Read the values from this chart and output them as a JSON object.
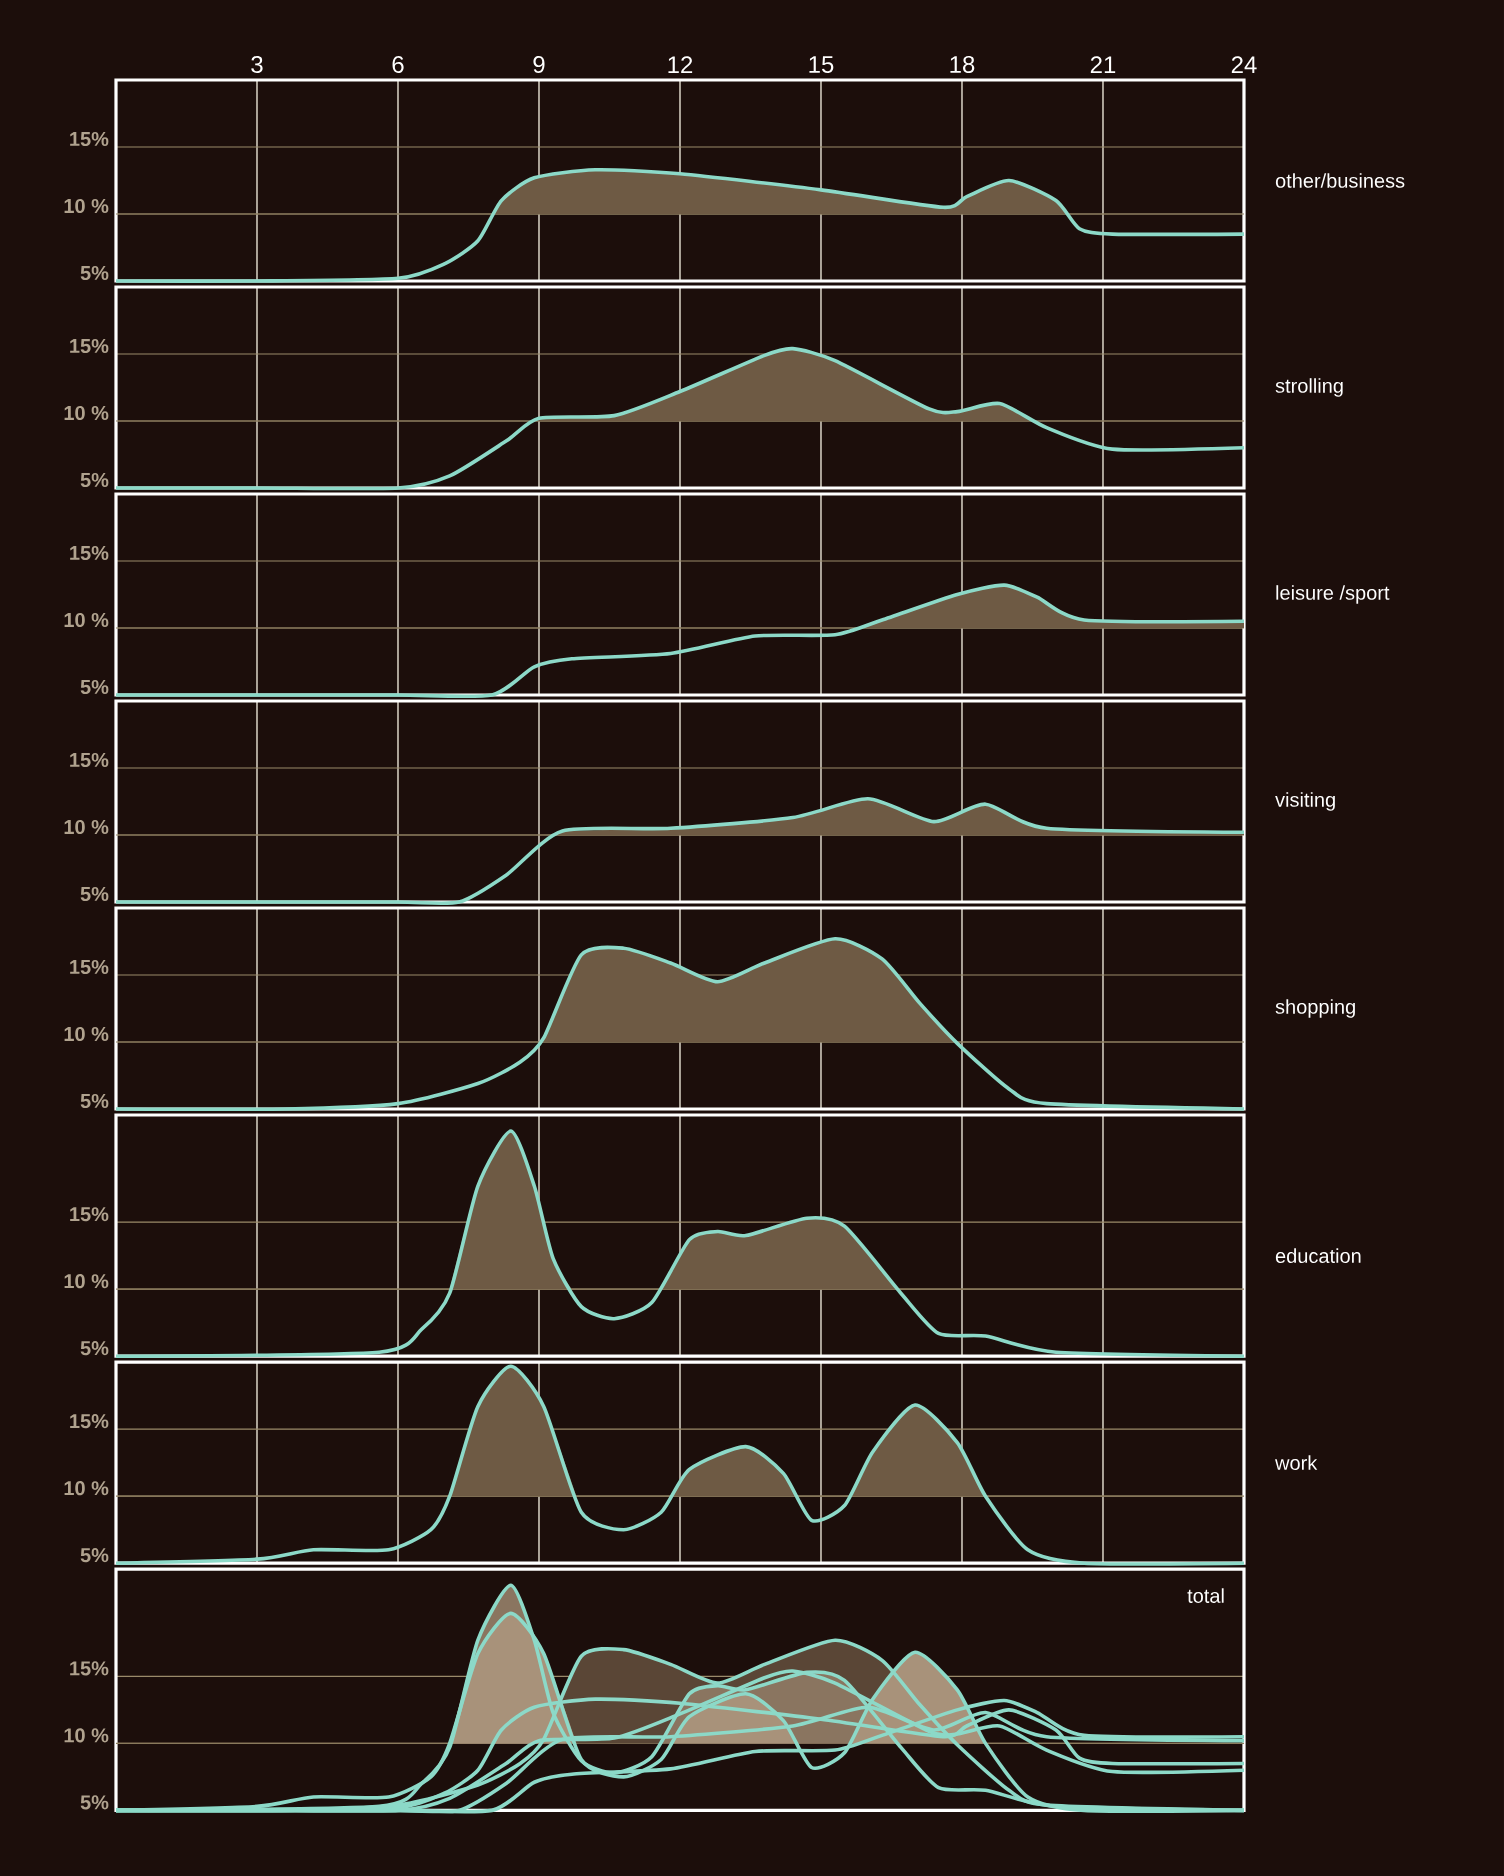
{
  "chart_data": [
    {
      "type": "line",
      "xlim": [
        0,
        24
      ],
      "xticks": [
        3,
        6,
        9,
        12,
        15,
        18,
        21,
        24
      ],
      "ylim": [
        5,
        20
      ],
      "yticks": [
        {
          "value": 5,
          "label": "5%"
        },
        {
          "value": 10,
          "label": "10 %"
        },
        {
          "value": 15,
          "label": "15%"
        }
      ],
      "grid": true,
      "ref_lines": [
        {
          "axis": "y",
          "value": 10,
          "color": "#8a7a5c"
        }
      ],
      "series": [
        {
          "type": "area",
          "color": "#6e5a44",
          "x": [
            8.0,
            8.2,
            8.9,
            10.2,
            12,
            15,
            17.6,
            18.1,
            19,
            20,
            20.2
          ],
          "values": [
            10,
            11,
            12.7,
            13.3,
            13,
            11.8,
            10.5,
            11.3,
            12.5,
            11,
            10
          ]
        },
        {
          "name": "other/business",
          "color": "#8cd9c8",
          "x": [
            0,
            3,
            6,
            7,
            7.7,
            8.2,
            8.9,
            10.2,
            12,
            15,
            17.6,
            18.1,
            19,
            20,
            20.5,
            21.2,
            24
          ],
          "values": [
            5,
            5,
            5.2,
            6.3,
            8,
            11,
            12.7,
            13.3,
            13,
            11.8,
            10.5,
            11.3,
            12.5,
            11,
            8.9,
            8.5,
            8.5
          ]
        }
      ]
    },
    {
      "type": "line",
      "xlim": [
        0,
        24
      ],
      "xticks": [
        3,
        6,
        9,
        12,
        15,
        18,
        21,
        24
      ],
      "ylim": [
        5,
        20
      ],
      "yticks": [
        {
          "value": 5,
          "label": "5%"
        },
        {
          "value": 10,
          "label": "10 %"
        },
        {
          "value": 15,
          "label": "15%"
        }
      ],
      "grid": true,
      "tick_labels": "y",
      "ref_lines": [
        {
          "axis": "y",
          "value": 10,
          "color": "#8a7a5c"
        }
      ],
      "series": [
        {
          "type": "area",
          "color": "#6e5a44",
          "x": [
            8.9,
            9,
            10.6,
            12,
            13.8,
            14.4,
            15.3,
            17.3,
            17.9,
            18.8,
            19.5
          ],
          "values": [
            10,
            10.2,
            10.4,
            12.2,
            14.9,
            15.4,
            14.5,
            10.9,
            10.7,
            11.3,
            10
          ]
        },
        {
          "name": "strolling",
          "color": "#8cd9c8",
          "x": [
            0,
            3,
            6,
            7.1,
            8.3,
            9,
            10.6,
            12,
            13.8,
            14.4,
            15.3,
            17.3,
            17.9,
            18.8,
            19.8,
            21.2,
            24
          ],
          "values": [
            5,
            5,
            5,
            5.9,
            8.5,
            10.2,
            10.4,
            12.2,
            14.9,
            15.4,
            14.5,
            10.9,
            10.7,
            11.3,
            9.5,
            7.9,
            8
          ]
        }
      ]
    },
    {
      "type": "line",
      "xlim": [
        0,
        24
      ],
      "xticks": [
        3,
        6,
        9,
        12,
        15,
        18,
        21,
        24
      ],
      "ylim": [
        5,
        20
      ],
      "yticks": [
        {
          "value": 5,
          "label": "5%"
        },
        {
          "value": 10,
          "label": "10 %"
        },
        {
          "value": 15,
          "label": "15%"
        }
      ],
      "grid": true,
      "tick_labels": "y",
      "ref_lines": [
        {
          "axis": "y",
          "value": 10,
          "color": "#8a7a5c"
        }
      ],
      "series": [
        {
          "type": "area",
          "color": "#6e5a44",
          "x": [
            15.8,
            16.3,
            17.9,
            18.9,
            19.6,
            20.6,
            24
          ],
          "values": [
            10,
            10.6,
            12.5,
            13.2,
            12.3,
            10.6,
            10.5
          ]
        },
        {
          "name": "leisure /sport",
          "color": "#8cd9c8",
          "x": [
            0,
            3,
            6,
            8,
            8.9,
            9.7,
            11.8,
            13.6,
            15.3,
            16.3,
            17.9,
            18.9,
            19.6,
            20.6,
            24
          ],
          "values": [
            5,
            5,
            5,
            5,
            7.1,
            7.7,
            8.1,
            9.4,
            9.5,
            10.6,
            12.5,
            13.2,
            12.3,
            10.6,
            10.5
          ]
        }
      ]
    },
    {
      "type": "line",
      "xlim": [
        0,
        24
      ],
      "xticks": [
        3,
        6,
        9,
        12,
        15,
        18,
        21,
        24
      ],
      "ylim": [
        5,
        20
      ],
      "yticks": [
        {
          "value": 5,
          "label": "5%"
        },
        {
          "value": 10,
          "label": "10 %"
        },
        {
          "value": 15,
          "label": "15%"
        }
      ],
      "grid": true,
      "tick_labels": "y",
      "ref_lines": [
        {
          "axis": "y",
          "value": 10,
          "color": "#8a7a5c"
        }
      ],
      "series": [
        {
          "type": "area",
          "color": "#6e5a44",
          "x": [
            9.4,
            9.5,
            11.8,
            14.4,
            16,
            17.4,
            18.5,
            19.8,
            24
          ],
          "values": [
            10,
            10.3,
            10.5,
            11.3,
            12.7,
            11,
            12.3,
            10.5,
            10.2
          ]
        },
        {
          "name": "visiting",
          "color": "#8cd9c8",
          "x": [
            0,
            3,
            6,
            7.3,
            8.3,
            9.5,
            11.8,
            14.4,
            16,
            17.4,
            18.5,
            19.8,
            24
          ],
          "values": [
            5,
            5,
            5,
            5,
            7,
            10.3,
            10.5,
            11.3,
            12.7,
            11,
            12.3,
            10.5,
            10.2
          ]
        }
      ]
    },
    {
      "type": "line",
      "xlim": [
        0,
        24
      ],
      "xticks": [
        3,
        6,
        9,
        12,
        15,
        18,
        21,
        24
      ],
      "ylim": [
        5,
        20
      ],
      "yticks": [
        {
          "value": 5,
          "label": "5%"
        },
        {
          "value": 10,
          "label": "10 %"
        },
        {
          "value": 15,
          "label": "15%"
        }
      ],
      "grid": true,
      "tick_labels": "y",
      "ref_lines": [
        {
          "axis": "y",
          "value": 10,
          "color": "#8a7a5c"
        }
      ],
      "series": [
        {
          "type": "area",
          "color": "#6e5a44",
          "x": [
            9.0,
            9.1,
            9.9,
            10.8,
            11.8,
            12.8,
            13.8,
            15.3,
            16.3,
            17.1,
            17.9
          ],
          "values": [
            10,
            10.3,
            16.5,
            17,
            15.9,
            14.5,
            15.9,
            17.7,
            16.2,
            12.9,
            10
          ]
        },
        {
          "name": "shopping",
          "color": "#8cd9c8",
          "x": [
            0,
            3.6,
            6,
            7.7,
            8.6,
            9.1,
            9.9,
            10.8,
            11.8,
            12.8,
            13.8,
            15.3,
            16.3,
            17.1,
            17.9,
            19,
            19.8,
            24
          ],
          "values": [
            5,
            5,
            5.4,
            6.9,
            8.5,
            10.3,
            16.5,
            17,
            15.9,
            14.5,
            15.9,
            17.7,
            16.2,
            12.9,
            9.9,
            6.5,
            5.4,
            5
          ]
        }
      ]
    },
    {
      "type": "line",
      "xlim": [
        0,
        24
      ],
      "xticks": [
        3,
        6,
        9,
        12,
        15,
        18,
        21,
        24
      ],
      "ylim": [
        5,
        23
      ],
      "yticks": [
        {
          "value": 5,
          "label": "5%"
        },
        {
          "value": 10,
          "label": "10 %"
        },
        {
          "value": 15,
          "label": "15%"
        }
      ],
      "grid": true,
      "tick_labels": "y",
      "ref_lines": [
        {
          "axis": "y",
          "value": 10,
          "color": "#8a7a5c"
        }
      ],
      "series": [
        {
          "type": "area",
          "color": "#6e5a44",
          "x": [
            7.1,
            7.7,
            8.4,
            8.9,
            9.3,
            9.7,
            10.6,
            11.6,
            12.2,
            12.8,
            13.4,
            14.7,
            15.5,
            16.6
          ],
          "values": [
            10,
            17.7,
            21.8,
            17.7,
            12.3,
            10,
            null,
            10,
            13.7,
            14.3,
            14,
            15.3,
            14.7,
            10
          ]
        },
        {
          "name": "education",
          "color": "#8cd9c8",
          "x": [
            0,
            5.6,
            6.5,
            7.1,
            7.7,
            8.4,
            8.9,
            9.3,
            9.9,
            10.6,
            11.4,
            12.2,
            12.8,
            13.4,
            14.7,
            15.5,
            16.7,
            17.5,
            18.5,
            20,
            24
          ],
          "values": [
            5,
            5.3,
            7,
            9.7,
            17.7,
            21.8,
            17.7,
            12.3,
            8.7,
            7.8,
            9,
            13.7,
            14.3,
            14,
            15.3,
            14.7,
            9.7,
            6.7,
            6.5,
            5.3,
            5
          ]
        }
      ]
    },
    {
      "type": "line",
      "xlim": [
        0,
        24
      ],
      "xticks": [
        3,
        6,
        9,
        12,
        15,
        18,
        21,
        24
      ],
      "ylim": [
        5,
        20
      ],
      "yticks": [
        {
          "value": 5,
          "label": "5%"
        },
        {
          "value": 10,
          "label": "10 %"
        },
        {
          "value": 15,
          "label": "15%"
        }
      ],
      "grid": true,
      "tick_labels": "y",
      "ref_lines": [
        {
          "axis": "y",
          "value": 10,
          "color": "#8a7a5c"
        }
      ],
      "series": [
        {
          "type": "area",
          "color": "#6e5a44",
          "x": [
            7.1,
            7.7,
            8.4,
            9.1,
            9.8,
            10.8,
            11.8,
            12.2,
            13.4,
            14.2,
            14.5,
            14.8,
            15.6,
            16.1,
            17,
            17.9,
            18.5
          ],
          "values": [
            10,
            16.7,
            19.7,
            16.7,
            10,
            null,
            10,
            12,
            13.7,
            11.7,
            10,
            null,
            10,
            13.3,
            16.8,
            14,
            10
          ]
        },
        {
          "name": "work",
          "color": "#8cd9c8",
          "x": [
            0,
            3,
            4.2,
            5.8,
            6.7,
            7.1,
            7.7,
            8.4,
            9.1,
            9.9,
            10.8,
            11.6,
            12.2,
            13.4,
            14.2,
            14.8,
            15.5,
            16.1,
            17,
            17.9,
            18.5,
            19.4,
            20.6,
            24
          ],
          "values": [
            5,
            5.3,
            6,
            6,
            7.5,
            10,
            16.7,
            19.7,
            16.7,
            8.8,
            7.5,
            8.8,
            12,
            13.7,
            11.7,
            8.2,
            9.3,
            13.3,
            16.8,
            14,
            10,
            6,
            5,
            5
          ]
        }
      ]
    },
    {
      "type": "line",
      "xlim": [
        0,
        24
      ],
      "xticks": [
        3,
        6,
        9,
        12,
        15,
        18,
        21,
        24
      ],
      "ylim": [
        5,
        23
      ],
      "yticks": [
        {
          "value": 5,
          "label": "5%"
        },
        {
          "value": 10,
          "label": "10 %"
        },
        {
          "value": 15,
          "label": "15%"
        }
      ],
      "grid": "y",
      "tick_labels": "y",
      "title": "total",
      "ref_lines": [
        {
          "axis": "y",
          "value": 10,
          "color": "#8a7a5c"
        }
      ],
      "series": [
        {
          "type": "area",
          "color": "#5a4636",
          "x": [
            9.0,
            9.9,
            10.8,
            11.8,
            12.8,
            13.8,
            15.3,
            16.3,
            17.9
          ],
          "values": [
            10,
            16.5,
            17,
            15.9,
            14.5,
            15.9,
            17.7,
            16.2,
            10
          ]
        },
        {
          "type": "area",
          "color": "#8a7560",
          "x": [
            7.1,
            7.7,
            8.4,
            8.9,
            9.7,
            10.6,
            11.6,
            12.2,
            12.8,
            13.4,
            14.7,
            15.5,
            16.6
          ],
          "values": [
            10,
            17.7,
            21.8,
            17.7,
            10,
            null,
            10,
            13.7,
            14.3,
            14,
            15.3,
            14.7,
            10
          ]
        },
        {
          "type": "area",
          "color": "#a8927a",
          "x": [
            7.1,
            7.7,
            8.4,
            9.1,
            9.8,
            10.8,
            11.8,
            12.2,
            13.4,
            14.2,
            14.5,
            14.8,
            15.6,
            16.1,
            17,
            17.9,
            18.5
          ],
          "values": [
            10,
            16.7,
            19.7,
            16.7,
            10,
            null,
            10,
            12,
            13.7,
            11.7,
            10,
            null,
            10,
            13.3,
            16.8,
            14,
            10
          ]
        },
        {
          "color": "#8cd9c8",
          "x": [
            0,
            3,
            6,
            7,
            7.7,
            8.2,
            8.9,
            10.2,
            12,
            15,
            17.6,
            18.1,
            19,
            20,
            20.5,
            21.2,
            24
          ],
          "values": [
            5,
            5,
            5.2,
            6.3,
            8,
            11,
            12.7,
            13.3,
            13,
            11.8,
            10.5,
            11.3,
            12.5,
            11,
            8.9,
            8.5,
            8.5
          ]
        },
        {
          "color": "#8cd9c8",
          "x": [
            0,
            3,
            6,
            7.1,
            8.3,
            9,
            10.6,
            12,
            13.8,
            14.4,
            15.3,
            17.3,
            17.9,
            18.8,
            19.8,
            21.2,
            24
          ],
          "values": [
            5,
            5,
            5,
            5.9,
            8.5,
            10.2,
            10.4,
            12.2,
            14.9,
            15.4,
            14.5,
            10.9,
            10.7,
            11.3,
            9.5,
            7.9,
            8
          ]
        },
        {
          "color": "#8cd9c8",
          "x": [
            0,
            3,
            6,
            8,
            8.9,
            9.7,
            11.8,
            13.6,
            15.3,
            16.3,
            17.9,
            18.9,
            19.6,
            20.6,
            24
          ],
          "values": [
            5,
            5,
            5,
            5,
            7.1,
            7.7,
            8.1,
            9.4,
            9.5,
            10.6,
            12.5,
            13.2,
            12.3,
            10.6,
            10.5
          ]
        },
        {
          "color": "#8cd9c8",
          "x": [
            0,
            3,
            6,
            7.3,
            8.3,
            9.5,
            11.8,
            14.4,
            16,
            17.4,
            18.5,
            19.8,
            24
          ],
          "values": [
            5,
            5,
            5,
            5,
            7,
            10.3,
            10.5,
            11.3,
            12.7,
            11,
            12.3,
            10.5,
            10.2
          ]
        },
        {
          "color": "#8cd9c8",
          "x": [
            0,
            3.6,
            6,
            7.7,
            8.6,
            9.1,
            9.9,
            10.8,
            11.8,
            12.8,
            13.8,
            15.3,
            16.3,
            17.1,
            17.9,
            19,
            19.8,
            24
          ],
          "values": [
            5,
            5,
            5.4,
            6.9,
            8.5,
            10.3,
            16.5,
            17,
            15.9,
            14.5,
            15.9,
            17.7,
            16.2,
            12.9,
            9.9,
            6.5,
            5.4,
            5
          ]
        },
        {
          "color": "#8cd9c8",
          "x": [
            0,
            5.6,
            6.5,
            7.1,
            7.7,
            8.4,
            8.9,
            9.3,
            9.9,
            10.6,
            11.4,
            12.2,
            12.8,
            13.4,
            14.7,
            15.5,
            16.7,
            17.5,
            18.5,
            20,
            24
          ],
          "values": [
            5,
            5.3,
            7,
            9.7,
            17.7,
            21.8,
            17.7,
            12.3,
            8.7,
            7.8,
            9,
            13.7,
            14.3,
            14,
            15.3,
            14.7,
            9.7,
            6.7,
            6.5,
            5.3,
            5
          ]
        },
        {
          "color": "#8cd9c8",
          "x": [
            0,
            3,
            4.2,
            5.8,
            6.7,
            7.1,
            7.7,
            8.4,
            9.1,
            9.9,
            10.8,
            11.6,
            12.2,
            13.4,
            14.2,
            14.8,
            15.5,
            16.1,
            17,
            17.9,
            18.5,
            19.4,
            20.6,
            24
          ],
          "values": [
            5,
            5.3,
            6,
            6,
            7.5,
            10,
            16.7,
            19.7,
            16.7,
            8.8,
            7.5,
            8.8,
            12,
            13.7,
            11.7,
            8.2,
            9.3,
            13.3,
            16.8,
            14,
            10,
            6,
            5,
            5
          ]
        }
      ]
    }
  ]
}
